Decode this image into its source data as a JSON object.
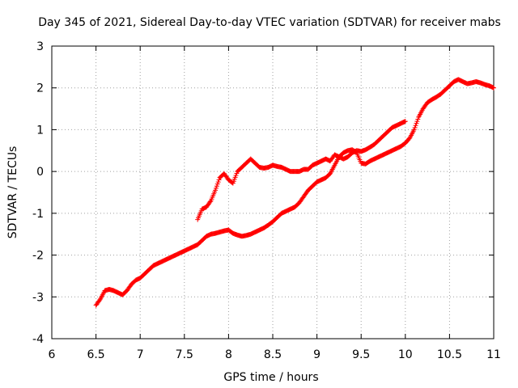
{
  "chart_data": {
    "type": "scatter",
    "title": "Day 345 of 2021, Sidereal Day-to-day VTEC variation (SDTVAR) for receiver mabs",
    "xlabel": "GPS time / hours",
    "ylabel": "SDTVAR / TECUs",
    "xlim": [
      6,
      11
    ],
    "ylim": [
      -4,
      3
    ],
    "xticks": [
      "6",
      "6.5",
      "7",
      "7.5",
      "8",
      "8.5",
      "9",
      "9.5",
      "10",
      "10.5",
      "11"
    ],
    "yticks": [
      "-4",
      "-3",
      "-2",
      "-1",
      "0",
      "1",
      "2",
      "3"
    ],
    "grid": true,
    "marker": "plus",
    "series": [
      {
        "name": "series-1",
        "color": "#ff0000",
        "x": [
          6.5,
          6.55,
          6.6,
          6.65,
          6.7,
          6.75,
          6.8,
          6.85,
          6.9,
          6.95,
          7.0,
          7.05,
          7.1,
          7.15,
          7.2,
          7.25,
          7.3,
          7.35,
          7.4,
          7.45,
          7.5,
          7.55,
          7.6,
          7.65,
          7.7,
          7.75,
          7.8,
          7.85,
          7.9,
          7.95,
          8.0,
          8.05,
          8.1,
          8.15,
          8.2,
          8.25,
          8.3,
          8.35,
          8.4,
          8.45,
          8.5,
          8.55,
          8.6,
          8.65,
          8.7,
          8.75,
          8.8,
          8.85,
          8.9,
          8.95,
          9.0,
          9.05,
          9.1,
          9.15,
          9.2,
          9.25,
          9.3,
          9.35,
          9.4,
          9.45,
          9.5,
          9.55,
          9.6,
          9.65,
          9.7,
          9.75,
          9.8,
          9.85,
          9.9,
          9.95,
          10.0,
          10.05,
          10.1,
          10.15,
          10.2,
          10.25,
          10.3,
          10.35,
          10.4,
          10.45,
          10.5,
          10.55,
          10.6,
          10.65,
          10.7,
          10.75,
          10.8,
          10.85,
          10.9,
          10.95,
          11.0
        ],
        "y": [
          -3.2,
          -3.05,
          -2.85,
          -2.82,
          -2.85,
          -2.9,
          -2.95,
          -2.85,
          -2.7,
          -2.6,
          -2.55,
          -2.45,
          -2.35,
          -2.25,
          -2.2,
          -2.15,
          -2.1,
          -2.05,
          -2.0,
          -1.95,
          -1.9,
          -1.85,
          -1.8,
          -1.75,
          -1.65,
          -1.55,
          -1.5,
          -1.48,
          -1.45,
          -1.42,
          -1.4,
          -1.48,
          -1.52,
          -1.55,
          -1.53,
          -1.5,
          -1.45,
          -1.4,
          -1.35,
          -1.28,
          -1.2,
          -1.1,
          -1.0,
          -0.95,
          -0.9,
          -0.85,
          -0.75,
          -0.6,
          -0.45,
          -0.35,
          -0.25,
          -0.2,
          -0.15,
          -0.05,
          0.15,
          0.35,
          0.45,
          0.5,
          0.52,
          0.45,
          0.2,
          0.18,
          0.25,
          0.3,
          0.35,
          0.4,
          0.45,
          0.5,
          0.55,
          0.6,
          0.68,
          0.8,
          1.0,
          1.3,
          1.5,
          1.65,
          1.72,
          1.78,
          1.85,
          1.95,
          2.05,
          2.15,
          2.2,
          2.15,
          2.1,
          2.12,
          2.15,
          2.12,
          2.08,
          2.05,
          2.0
        ]
      },
      {
        "name": "series-2",
        "color": "#ff0000",
        "x": [
          7.65,
          7.7,
          7.75,
          7.8,
          7.85,
          7.9,
          7.95,
          8.0,
          8.05,
          8.1,
          8.15,
          8.2,
          8.25,
          8.3,
          8.35,
          8.4,
          8.45,
          8.5,
          8.55,
          8.6,
          8.65,
          8.7,
          8.75,
          8.8,
          8.85,
          8.9,
          8.95,
          9.0,
          9.05,
          9.1,
          9.15,
          9.2,
          9.25,
          9.3,
          9.35,
          9.4,
          9.45,
          9.5,
          9.55,
          9.6,
          9.65,
          9.7,
          9.75,
          9.8,
          9.85,
          9.9,
          9.95,
          10.0
        ],
        "y": [
          -1.15,
          -0.9,
          -0.85,
          -0.7,
          -0.45,
          -0.15,
          -0.05,
          -0.2,
          -0.28,
          0.0,
          0.1,
          0.2,
          0.3,
          0.2,
          0.1,
          0.08,
          0.1,
          0.15,
          0.12,
          0.1,
          0.05,
          0.0,
          0.0,
          0.0,
          0.05,
          0.05,
          0.15,
          0.2,
          0.25,
          0.3,
          0.25,
          0.4,
          0.35,
          0.3,
          0.35,
          0.45,
          0.5,
          0.48,
          0.52,
          0.58,
          0.65,
          0.75,
          0.85,
          0.95,
          1.05,
          1.1,
          1.15,
          1.2
        ]
      }
    ]
  }
}
